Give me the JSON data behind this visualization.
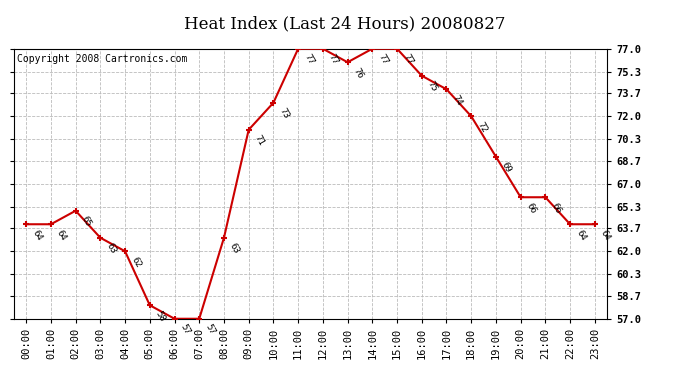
{
  "title": "Heat Index (Last 24 Hours) 20080827",
  "copyright": "Copyright 2008 Cartronics.com",
  "hours": [
    "00:00",
    "01:00",
    "02:00",
    "03:00",
    "04:00",
    "05:00",
    "06:00",
    "07:00",
    "08:00",
    "09:00",
    "10:00",
    "11:00",
    "12:00",
    "13:00",
    "14:00",
    "15:00",
    "16:00",
    "17:00",
    "18:00",
    "19:00",
    "20:00",
    "21:00",
    "22:00",
    "23:00"
  ],
  "values": [
    64,
    64,
    65,
    63,
    62,
    58,
    57,
    57,
    63,
    71,
    73,
    77,
    77,
    76,
    77,
    77,
    75,
    74,
    72,
    69,
    66,
    66,
    64,
    64
  ],
  "ylim": [
    57.0,
    77.0
  ],
  "yticks": [
    57.0,
    58.7,
    60.3,
    62.0,
    63.7,
    65.3,
    67.0,
    68.7,
    70.3,
    72.0,
    73.7,
    75.3,
    77.0
  ],
  "line_color": "#cc0000",
  "marker_color": "#cc0000",
  "bg_color": "#ffffff",
  "grid_color": "#bbbbbb",
  "title_fontsize": 12,
  "label_fontsize": 7.5,
  "annotation_fontsize": 6.5,
  "copyright_fontsize": 7
}
